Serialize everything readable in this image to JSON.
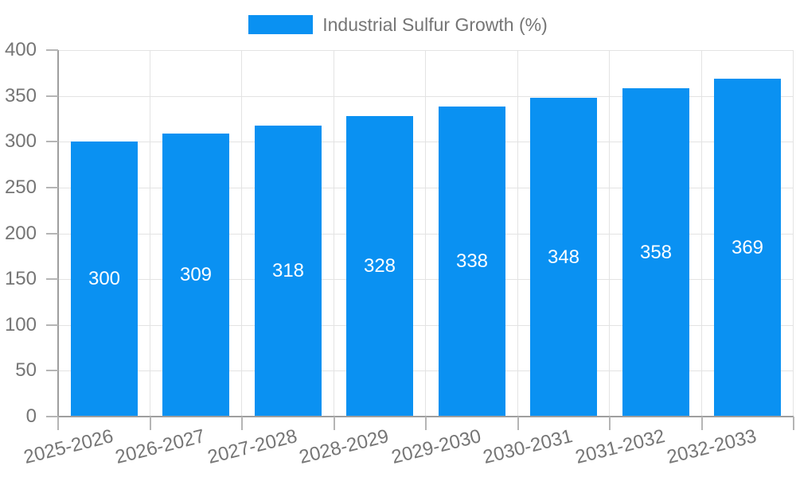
{
  "legend": {
    "label": "Industrial Sulfur Growth (%)"
  },
  "chart_data": {
    "type": "bar",
    "title": "",
    "legend_entries": [
      "Industrial Sulfur Growth (%)"
    ],
    "legend_position": "top",
    "categories": [
      "2025-2026",
      "2026-2027",
      "2027-2028",
      "2028-2029",
      "2029-2030",
      "2030-2031",
      "2031-2032",
      "2032-2033"
    ],
    "values": [
      300,
      309,
      318,
      328,
      338,
      348,
      358,
      369
    ],
    "xlabel": "",
    "ylabel": "",
    "ylim": [
      0,
      400
    ],
    "ytick_step": 50,
    "yticks": [
      0,
      50,
      100,
      150,
      200,
      250,
      300,
      350,
      400
    ],
    "grid": "on",
    "bar_labels_shown": true,
    "colors": {
      "bar": "#0a91f2",
      "bar_label_text": "#ffffff",
      "axis_line": "#9e9e9e",
      "tick_mark": "#b5b5b5",
      "gridline": "#e3e3e3",
      "tick_label_text": "#757575",
      "legend_text": "#757575",
      "background": "#ffffff"
    }
  }
}
